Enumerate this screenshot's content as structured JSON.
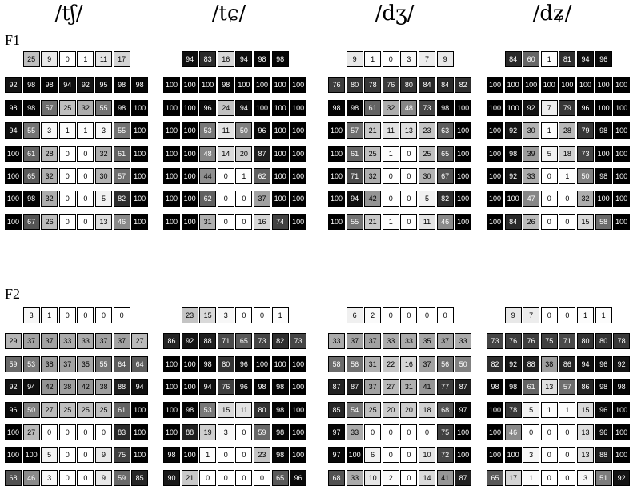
{
  "column_titles": [
    "/tʃ/",
    "/tɕ/",
    "/dʒ/",
    "/dʑ/"
  ],
  "row_labels": [
    "F1",
    "F2"
  ],
  "chart_data": {
    "type": "heatmap",
    "color_scale": {
      "min_value": 0,
      "max_value": 100,
      "low_color": "#ffffff",
      "high_color": "#000000"
    },
    "rows": [
      {
        "label": "F1",
        "panels": [
          {
            "title": "/tʃ/",
            "top_row": [
              25,
              9,
              0,
              1,
              11,
              17
            ],
            "grid": [
              [
                92,
                98,
                98,
                94,
                92,
                95,
                98,
                98
              ],
              [
                98,
                98,
                57,
                25,
                32,
                55,
                98,
                100
              ],
              [
                94,
                55,
                3,
                1,
                1,
                3,
                55,
                100
              ],
              [
                100,
                61,
                28,
                0,
                0,
                32,
                61,
                100
              ],
              [
                100,
                65,
                32,
                0,
                0,
                30,
                57,
                100
              ],
              [
                100,
                98,
                32,
                0,
                0,
                5,
                82,
                100
              ],
              [
                100,
                67,
                26,
                0,
                0,
                13,
                46,
                100
              ]
            ]
          },
          {
            "title": "/tɕ/",
            "top_row": [
              94,
              83,
              16,
              94,
              98,
              98
            ],
            "grid": [
              [
                100,
                100,
                100,
                98,
                100,
                100,
                100,
                100
              ],
              [
                100,
                100,
                96,
                24,
                94,
                100,
                100,
                100
              ],
              [
                100,
                100,
                53,
                11,
                50,
                96,
                100,
                100
              ],
              [
                100,
                100,
                48,
                14,
                20,
                87,
                100,
                100
              ],
              [
                100,
                100,
                44,
                0,
                1,
                62,
                100,
                100
              ],
              [
                100,
                100,
                62,
                0,
                0,
                37,
                100,
                100
              ],
              [
                100,
                100,
                31,
                0,
                0,
                16,
                74,
                100
              ]
            ]
          },
          {
            "title": "/dʒ/",
            "top_row": [
              9,
              1,
              0,
              3,
              7,
              9
            ],
            "grid": [
              [
                76,
                80,
                78,
                76,
                80,
                84,
                84,
                82
              ],
              [
                98,
                98,
                61,
                32,
                48,
                73,
                98,
                100
              ],
              [
                100,
                57,
                21,
                11,
                13,
                23,
                63,
                100
              ],
              [
                100,
                61,
                25,
                1,
                0,
                25,
                65,
                100
              ],
              [
                100,
                71,
                32,
                0,
                0,
                30,
                67,
                100
              ],
              [
                100,
                94,
                42,
                0,
                0,
                5,
                82,
                100
              ],
              [
                100,
                55,
                21,
                1,
                0,
                11,
                46,
                100
              ]
            ]
          },
          {
            "title": "/dʑ/",
            "top_row": [
              84,
              60,
              1,
              81,
              94,
              96
            ],
            "grid": [
              [
                100,
                100,
                100,
                100,
                100,
                100,
                100,
                100
              ],
              [
                100,
                100,
                92,
                7,
                79,
                96,
                100,
                100
              ],
              [
                100,
                92,
                30,
                1,
                28,
                79,
                98,
                100
              ],
              [
                100,
                98,
                39,
                5,
                18,
                73,
                100,
                100
              ],
              [
                100,
                92,
                33,
                0,
                1,
                50,
                98,
                100
              ],
              [
                100,
                100,
                47,
                0,
                0,
                32,
                100,
                100
              ],
              [
                100,
                84,
                26,
                0,
                0,
                15,
                58,
                100
              ]
            ]
          }
        ]
      },
      {
        "label": "F2",
        "panels": [
          {
            "title": "/tʃ/",
            "top_row": [
              3,
              1,
              0,
              0,
              0,
              0
            ],
            "grid": [
              [
                29,
                37,
                37,
                33,
                33,
                37,
                37,
                27
              ],
              [
                59,
                53,
                38,
                37,
                35,
                55,
                64,
                64
              ],
              [
                92,
                94,
                42,
                38,
                42,
                38,
                88,
                94
              ],
              [
                96,
                50,
                27,
                25,
                25,
                25,
                61,
                100
              ],
              [
                100,
                27,
                0,
                0,
                0,
                0,
                83,
                100
              ],
              [
                100,
                100,
                5,
                0,
                0,
                9,
                75,
                100
              ],
              [
                68,
                46,
                3,
                0,
                0,
                9,
                59,
                85
              ]
            ]
          },
          {
            "title": "/tɕ/",
            "top_row": [
              23,
              15,
              3,
              0,
              0,
              1
            ],
            "grid": [
              [
                86,
                92,
                88,
                71,
                65,
                73,
                82,
                73
              ],
              [
                100,
                100,
                98,
                80,
                96,
                100,
                100,
                100
              ],
              [
                100,
                100,
                94,
                76,
                96,
                98,
                98,
                100
              ],
              [
                100,
                98,
                53,
                15,
                11,
                80,
                98,
                100
              ],
              [
                100,
                88,
                19,
                3,
                0,
                59,
                98,
                100
              ],
              [
                98,
                100,
                1,
                0,
                0,
                23,
                98,
                100
              ],
              [
                90,
                21,
                0,
                0,
                0,
                0,
                65,
                96
              ]
            ]
          },
          {
            "title": "/dʒ/",
            "top_row": [
              6,
              2,
              0,
              0,
              0,
              0
            ],
            "grid": [
              [
                33,
                37,
                37,
                33,
                33,
                35,
                37,
                33
              ],
              [
                58,
                56,
                31,
                22,
                16,
                37,
                56,
                50
              ],
              [
                87,
                87,
                37,
                27,
                31,
                41,
                77,
                87
              ],
              [
                85,
                54,
                25,
                20,
                20,
                18,
                68,
                97
              ],
              [
                97,
                33,
                0,
                0,
                0,
                0,
                75,
                100
              ],
              [
                97,
                100,
                6,
                0,
                0,
                10,
                72,
                100
              ],
              [
                68,
                33,
                10,
                2,
                0,
                14,
                41,
                87
              ]
            ]
          },
          {
            "title": "/dʑ/",
            "top_row": [
              9,
              7,
              0,
              0,
              1,
              1
            ],
            "grid": [
              [
                73,
                76,
                76,
                75,
                71,
                80,
                80,
                78
              ],
              [
                82,
                92,
                88,
                38,
                86,
                94,
                96,
                92
              ],
              [
                98,
                98,
                61,
                13,
                57,
                86,
                98,
                98
              ],
              [
                100,
                78,
                5,
                1,
                1,
                15,
                96,
                100
              ],
              [
                100,
                46,
                0,
                0,
                0,
                13,
                96,
                100
              ],
              [
                100,
                100,
                3,
                0,
                0,
                13,
                88,
                100
              ],
              [
                65,
                17,
                1,
                0,
                0,
                3,
                51,
                92
              ]
            ]
          }
        ]
      }
    ]
  }
}
